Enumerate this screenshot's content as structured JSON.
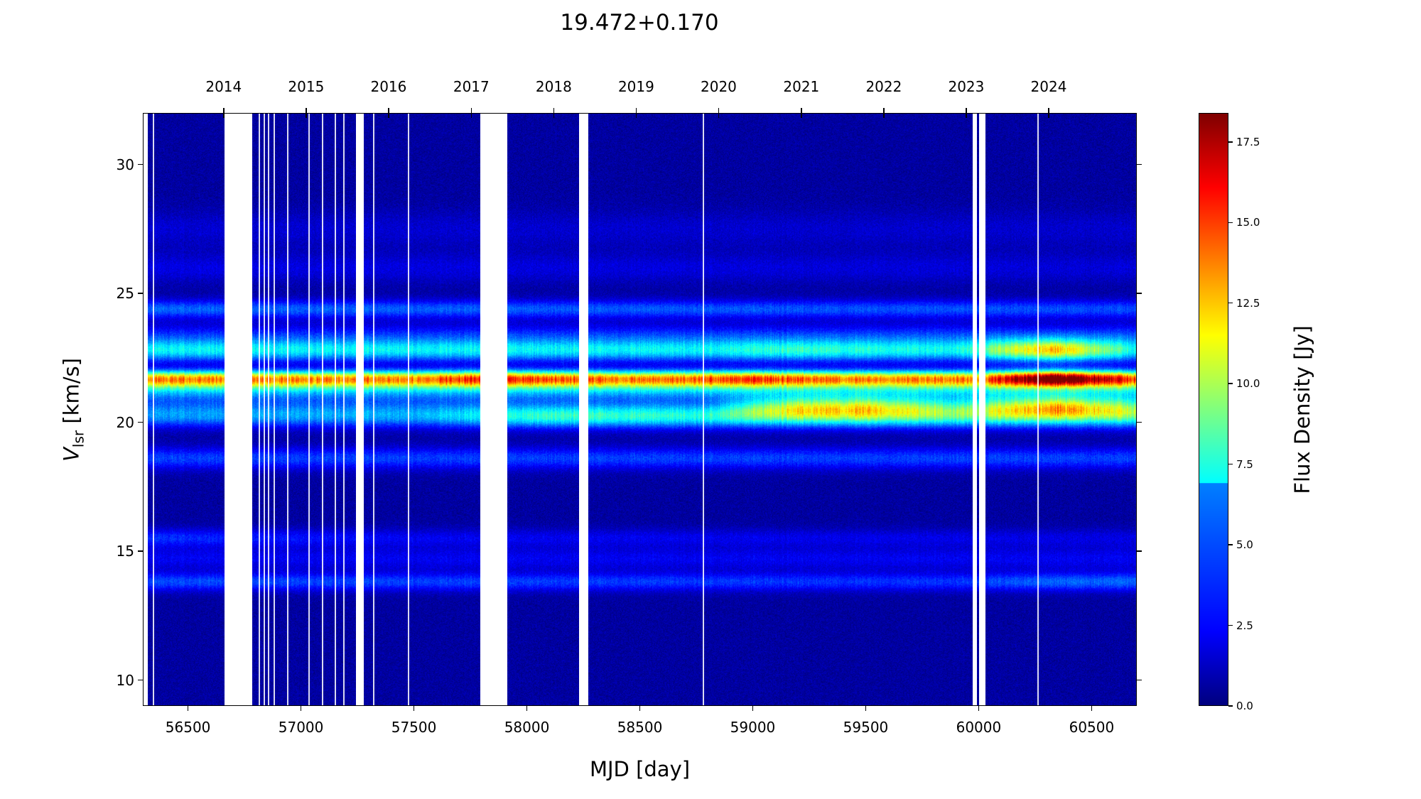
{
  "chart_data": {
    "type": "heatmap",
    "title": "19.472+0.170",
    "xlabel": "MJD [day]",
    "ylabel_main": "V",
    "ylabel_sub": "lsr",
    "ylabel_unit": " [km/s]",
    "xlim": [
      56300,
      60700
    ],
    "ylim": [
      9,
      32
    ],
    "xticks": [
      56500,
      57000,
      57500,
      58000,
      58500,
      59000,
      59500,
      60000,
      60500
    ],
    "yticks": [
      10,
      15,
      20,
      25,
      30
    ],
    "top_axis": {
      "labels": [
        "2014",
        "2015",
        "2016",
        "2017",
        "2018",
        "2019",
        "2020",
        "2021",
        "2022",
        "2023",
        "2024"
      ],
      "mjd": [
        56658,
        57023,
        57388,
        57754,
        58119,
        58484,
        58849,
        59215,
        59580,
        59945,
        60310
      ]
    },
    "colorbar": {
      "label": "Flux Density [Jy]",
      "colormap": "jet",
      "range": [
        0,
        18.4
      ],
      "ticks": [
        "0.0",
        "2.5",
        "5.0",
        "7.5",
        "10.0",
        "12.5",
        "15.0",
        "17.5"
      ]
    },
    "data_gaps_mjd": [
      [
        56300,
        56318
      ],
      [
        56660,
        56782
      ],
      [
        57240,
        57274
      ],
      [
        57790,
        57822
      ],
      [
        57822,
        57910
      ],
      [
        58228,
        58268
      ],
      [
        59969,
        59990
      ],
      [
        60000,
        60026
      ]
    ],
    "thin_gaps_mjd": [
      56340,
      56808,
      56830,
      56850,
      56876,
      56935,
      57030,
      57090,
      57145,
      57185,
      57315,
      57470,
      58775,
      60255
    ],
    "components": [
      {
        "v": 13.8,
        "width": 0.25,
        "amp": [
          [
            56300,
            3
          ],
          [
            59900,
            2.5
          ],
          [
            60300,
            3.5
          ],
          [
            60700,
            3.5
          ]
        ]
      },
      {
        "v": 14.7,
        "width": 0.3,
        "amp": [
          [
            56300,
            1.5
          ],
          [
            60700,
            1.5
          ]
        ]
      },
      {
        "v": 15.5,
        "width": 0.25,
        "amp": [
          [
            56300,
            2.5
          ],
          [
            57500,
            1.5
          ],
          [
            60700,
            1.2
          ]
        ]
      },
      {
        "v": 18.6,
        "width": 0.3,
        "amp": [
          [
            56300,
            2.8
          ],
          [
            60700,
            2.8
          ]
        ]
      },
      {
        "v": 20.2,
        "width": 0.3,
        "amp": [
          [
            56300,
            3.5
          ],
          [
            57500,
            4
          ],
          [
            58100,
            6.5
          ],
          [
            58800,
            6
          ],
          [
            59500,
            6.5
          ],
          [
            60000,
            6
          ],
          [
            60300,
            6
          ],
          [
            60700,
            6
          ]
        ]
      },
      {
        "v": 20.6,
        "width": 0.3,
        "amp": [
          [
            56300,
            2
          ],
          [
            58800,
            2
          ],
          [
            59200,
            8
          ],
          [
            59500,
            8.5
          ],
          [
            59900,
            5
          ],
          [
            60350,
            10
          ],
          [
            60700,
            6
          ]
        ]
      },
      {
        "v": 21.7,
        "width": 0.22,
        "amp": [
          [
            56300,
            11
          ],
          [
            57500,
            11
          ],
          [
            57800,
            13
          ],
          [
            58500,
            11
          ],
          [
            59000,
            12.5
          ],
          [
            59500,
            11
          ],
          [
            60000,
            11
          ],
          [
            60330,
            18.4
          ],
          [
            60700,
            12
          ]
        ]
      },
      {
        "v": 21.3,
        "width": 0.3,
        "amp": [
          [
            56300,
            5
          ],
          [
            60700,
            5
          ]
        ]
      },
      {
        "v": 22.8,
        "width": 0.3,
        "amp": [
          [
            56300,
            6
          ],
          [
            58800,
            6
          ],
          [
            59200,
            7
          ],
          [
            59900,
            6
          ],
          [
            60330,
            12
          ],
          [
            60700,
            6
          ]
        ]
      },
      {
        "v": 23.4,
        "width": 0.3,
        "amp": [
          [
            56300,
            2
          ],
          [
            60700,
            2.5
          ]
        ]
      },
      {
        "v": 24.4,
        "width": 0.25,
        "amp": [
          [
            56300,
            3.5
          ],
          [
            60700,
            3
          ]
        ]
      },
      {
        "v": 26.0,
        "width": 0.4,
        "amp": [
          [
            56300,
            1.2
          ],
          [
            60700,
            1
          ]
        ]
      },
      {
        "v": 27.5,
        "width": 0.5,
        "amp": [
          [
            56300,
            0.9
          ],
          [
            60700,
            0.8
          ]
        ]
      }
    ]
  }
}
